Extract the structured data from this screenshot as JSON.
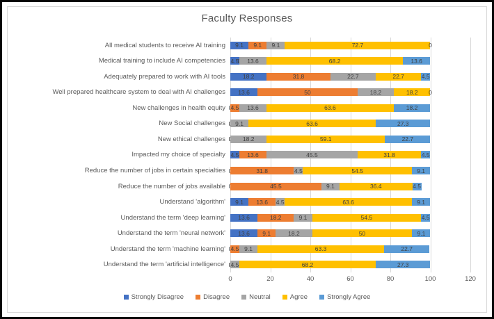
{
  "title": "Faculty Responses",
  "chart_data": {
    "type": "bar",
    "orientation": "horizontal",
    "stacked": true,
    "title": "Faculty Responses",
    "grid": true,
    "legend_position": "bottom",
    "data_labels": true,
    "xlim": [
      0,
      120
    ],
    "x_ticks": [
      0,
      20,
      40,
      60,
      80,
      100,
      120
    ],
    "categories": [
      "All medical students to receive AI training",
      "Medical training to include AI competencies",
      "Adequately prepared to work with AI tools",
      "Well prepared healthcare system to deal with AI challenges",
      "New challenges in health equity",
      "New Social challenges",
      "New ethical challenges",
      "Impacted my choice of specialty",
      "Reduce the number of jobs in certain specialties",
      "Reduce the number of jobs available",
      "Understand 'algorithm'",
      "Understand the term 'deep learning'",
      "Understand the term 'neural network'",
      "Understand the term 'machine learning'",
      "Understand the term 'artificial intelligence'"
    ],
    "series": [
      {
        "name": "Strongly Disagree",
        "color": "#4472C4",
        "values": [
          9.1,
          4.5,
          18.2,
          13.6,
          0,
          0,
          0,
          4.5,
          0,
          0,
          9.1,
          13.6,
          13.6,
          0,
          0
        ]
      },
      {
        "name": "Disagree",
        "color": "#ED7D31",
        "values": [
          9.1,
          0,
          31.8,
          50,
          4.5,
          0,
          0,
          13.6,
          31.8,
          45.5,
          13.6,
          18.2,
          9.1,
          4.5,
          0
        ]
      },
      {
        "name": "Neutral",
        "color": "#A5A5A5",
        "values": [
          9.1,
          13.6,
          22.7,
          18.2,
          13.6,
          9.1,
          18.2,
          45.5,
          4.5,
          9.1,
          4.5,
          9.1,
          18.2,
          9.1,
          4.5
        ]
      },
      {
        "name": "Agree",
        "color": "#FFC000",
        "values": [
          72.7,
          68.2,
          22.7,
          18.2,
          63.6,
          63.6,
          59.1,
          31.8,
          54.5,
          36.4,
          63.6,
          54.5,
          50,
          63.3,
          68.2
        ]
      },
      {
        "name": "Strongly Agree",
        "color": "#5B9BD5",
        "values": [
          0,
          13.6,
          4.5,
          0,
          18.2,
          27.3,
          22.7,
          4.5,
          9.1,
          4.5,
          9.1,
          4.5,
          9.1,
          22.7,
          27.3
        ]
      }
    ],
    "colors": {
      "strongly_disagree": "#4472C4",
      "disagree": "#ED7D31",
      "neutral": "#A5A5A5",
      "agree": "#FFC000",
      "strongly_agree": "#5B9BD5",
      "gridline": "#d9d9d9",
      "text": "#595959"
    }
  }
}
